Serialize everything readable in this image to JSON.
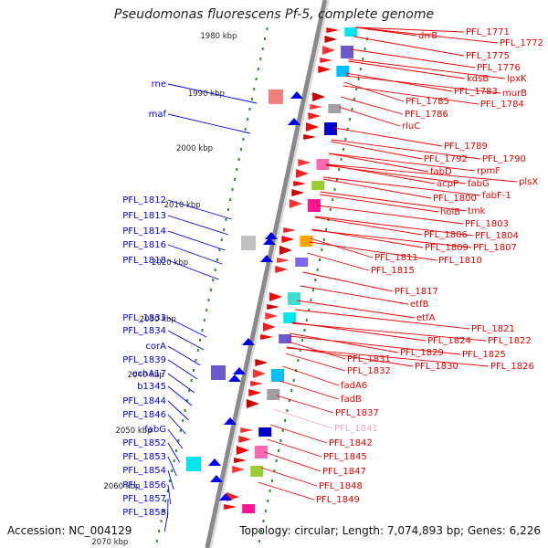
{
  "title": "Pseudomonas fluorescens Pf-5, complete genome",
  "footer": {
    "accession": "Accession: NC_004129",
    "summary": "Topology: circular; Length: 7,074,893 bp; Genes: 6,226"
  },
  "ruler": {
    "ticks": [
      "1980 kbp",
      "1990 kbp",
      "2000 kbp",
      "2010 kbp",
      "2020 kbp",
      "2030 kbp",
      "2040 kbp",
      "2050 kbp",
      "2060 kbp",
      "2070 kbp"
    ]
  },
  "colors": {
    "left_strand": "#0000ee",
    "right_strand": "#ee0000",
    "highlight": "#f4a6c8",
    "backbone": "#8a8a8a",
    "tick_dots": "#2e8b2e"
  },
  "left_genes": [
    "rne",
    "maf",
    "PFL_1812",
    "PFL_1813",
    "PFL_1814",
    "PFL_1816",
    "PFL_1818",
    "PFL_1833",
    "PFL_1834",
    "corA",
    "PFL_1839",
    "echA17",
    "b1345",
    "PFL_1844",
    "PFL_1846",
    "fabG",
    "PFL_1852",
    "PFL_1853",
    "PFL_1854",
    "PFL_1856",
    "PFL_1857",
    "PFL_1858"
  ],
  "right_genes": [
    "drrB",
    "PFL_1771",
    "PFL_1772",
    "PFL_1775",
    "PFL_1776",
    "kdsB",
    "lpxK",
    "PFL_1783",
    "murB",
    "PFL_1785",
    "PFL_1784",
    "PFL_1786",
    "rluC",
    "PFL_1789",
    "PFL_1792",
    "PFL_1790",
    "fabD",
    "rpmF",
    "acpP",
    "fabG",
    "plsX",
    "PFL_1800",
    "fabF-1",
    "holB",
    "tmk",
    "PFL_1803",
    "PFL_1806",
    "PFL_1804",
    "PFL_1809",
    "PFL_1807",
    "PFL_1811",
    "PFL_1810",
    "PFL_1815",
    "PFL_1817",
    "etfB",
    "etfA",
    "PFL_1821",
    "PFL_1824",
    "PFL_1822",
    "PFL_1829",
    "PFL_1825",
    "PFL_1831",
    "PFL_1830",
    "PFL_1826",
    "PFL_1832",
    "fadA6",
    "fadB",
    "PFL_1837",
    "PFL_1841",
    "PFL_1842",
    "PFL_1845",
    "PFL_1847",
    "PFL_1848",
    "PFL_1849"
  ]
}
